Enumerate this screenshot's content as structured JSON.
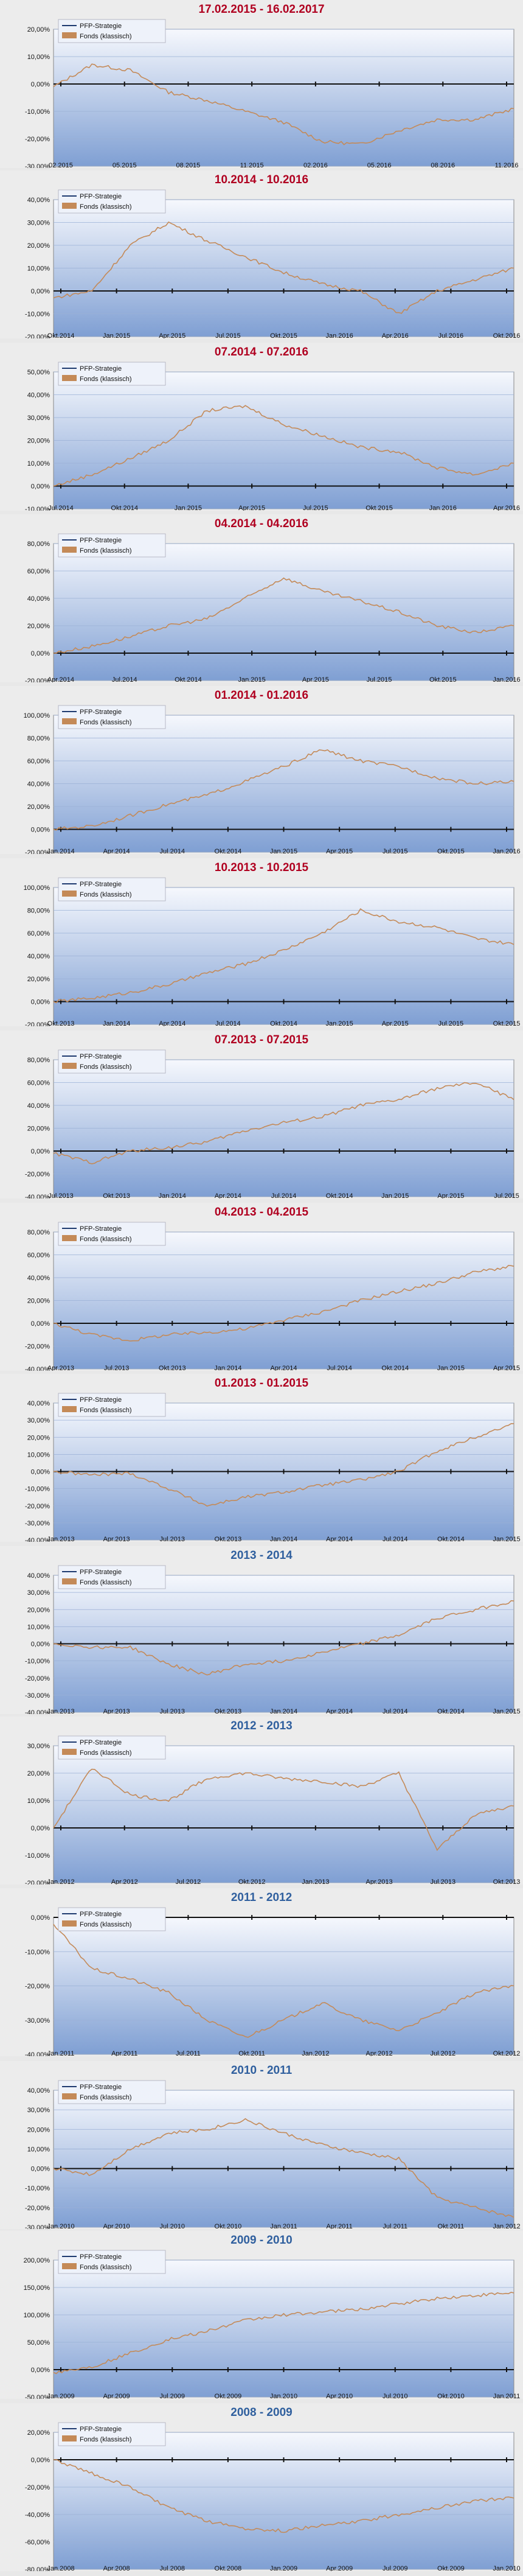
{
  "colors": {
    "period_title": "#b00020",
    "year_title": "#2f5f9e",
    "fund_line": "#c48a58",
    "ppp_line": "#1f3b70",
    "plot_bg_top": "#f6f8fd",
    "plot_bg_bottom": "#7f9fd3"
  },
  "legend": [
    "PFP-Strategie",
    "Fonds (klassisch)"
  ],
  "chart_data": [
    {
      "type": "line",
      "title": "17.02.2015 - 16.02.2017",
      "yticks": [
        "20,00%",
        "10,00%",
        "0,00%",
        "-10,00%",
        "-20,00%",
        "-30,00%"
      ],
      "ylim": [
        -30,
        20
      ],
      "xticks": [
        "02.2015",
        "05.2015",
        "08.2015",
        "11.2015",
        "02.2016",
        "05.2016",
        "08.2016",
        "11.2016"
      ],
      "series": [
        {
          "name": "Fonds (klassisch)",
          "x": [
            0,
            2,
            4,
            6,
            8,
            10,
            12,
            14,
            16,
            18,
            20,
            22,
            24
          ],
          "y": [
            -1,
            7,
            5,
            -3,
            -6,
            -10,
            -14,
            -21,
            -22,
            -17,
            -13,
            -13,
            -9
          ]
        }
      ]
    },
    {
      "type": "line",
      "title": "10.2014 - 10.2016",
      "yticks": [
        "40,00%",
        "30,00%",
        "20,00%",
        "10,00%",
        "0,00%",
        "-10,00%",
        "-20,00%"
      ],
      "ylim": [
        -20,
        40
      ],
      "xticks": [
        "Okt.2014",
        "Jan.2015",
        "Apr.2015",
        "Jul.2015",
        "Okt.2015",
        "Jan.2016",
        "Apr.2016",
        "Jul.2016",
        "Okt.2016"
      ],
      "series": [
        {
          "name": "Fonds (klassisch)",
          "x": [
            0,
            2,
            4,
            6,
            8,
            10,
            12,
            14,
            16,
            18,
            20,
            22,
            24
          ],
          "y": [
            -3,
            0,
            20,
            30,
            22,
            15,
            8,
            3,
            0,
            -10,
            0,
            5,
            10
          ]
        }
      ]
    },
    {
      "type": "line",
      "title": "07.2014 - 07.2016",
      "yticks": [
        "50,00%",
        "40,00%",
        "30,00%",
        "20,00%",
        "10,00%",
        "0,00%",
        "-10,00%"
      ],
      "ylim": [
        -10,
        50
      ],
      "xticks": [
        "Jul.2014",
        "Okt.2014",
        "Jan.2015",
        "Apr.2015",
        "Jul.2015",
        "Okt.2015",
        "Jan.2016",
        "Apr.2016"
      ],
      "series": [
        {
          "name": "Fonds (klassisch)",
          "x": [
            0,
            2,
            4,
            6,
            8,
            10,
            12,
            14,
            16,
            18,
            20,
            22,
            24
          ],
          "y": [
            0,
            5,
            12,
            20,
            33,
            35,
            27,
            22,
            17,
            15,
            8,
            5,
            10
          ]
        }
      ]
    },
    {
      "type": "line",
      "title": "04.2014 - 04.2016",
      "yticks": [
        "80,00%",
        "60,00%",
        "40,00%",
        "20,00%",
        "0,00%",
        "-20,00%"
      ],
      "ylim": [
        -20,
        80
      ],
      "xticks": [
        "Apr.2014",
        "Jul.2014",
        "Okt.2014",
        "Jan.2015",
        "Apr.2015",
        "Jul.2015",
        "Okt.2015",
        "Jan.2016"
      ],
      "series": [
        {
          "name": "Fonds (klassisch)",
          "x": [
            0,
            2,
            4,
            6,
            8,
            10,
            12,
            14,
            16,
            18,
            20,
            22,
            24
          ],
          "y": [
            0,
            5,
            12,
            20,
            25,
            40,
            55,
            45,
            38,
            30,
            20,
            15,
            20
          ]
        }
      ]
    },
    {
      "type": "line",
      "title": "01.2014 - 01.2016",
      "yticks": [
        "100,00%",
        "80,00%",
        "60,00%",
        "40,00%",
        "20,00%",
        "0,00%",
        "-20,00%"
      ],
      "ylim": [
        -20,
        100
      ],
      "xticks": [
        "Jan.2014",
        "Apr.2014",
        "Jul.2014",
        "Okt.2014",
        "Jan.2015",
        "Apr.2015",
        "Jul.2015",
        "Okt.2015",
        "Jan.2016"
      ],
      "series": [
        {
          "name": "Fonds (klassisch)",
          "x": [
            0,
            2,
            4,
            6,
            8,
            10,
            12,
            14,
            16,
            18,
            20,
            22,
            24
          ],
          "y": [
            0,
            3,
            12,
            22,
            30,
            42,
            55,
            70,
            60,
            55,
            45,
            40,
            42
          ]
        }
      ]
    },
    {
      "type": "line",
      "title": "10.2013 - 10.2015",
      "yticks": [
        "100,00%",
        "80,00%",
        "60,00%",
        "40,00%",
        "20,00%",
        "0,00%",
        "-20,00%"
      ],
      "ylim": [
        -20,
        100
      ],
      "xticks": [
        "Okt.2013",
        "Jan.2014",
        "Apr.2014",
        "Jul.2014",
        "Okt.2014",
        "Jan.2015",
        "Apr.2015",
        "Jul.2015",
        "Okt.2015"
      ],
      "series": [
        {
          "name": "Fonds (klassisch)",
          "x": [
            0,
            2,
            4,
            6,
            8,
            10,
            12,
            14,
            16,
            18,
            20,
            22,
            24
          ],
          "y": [
            0,
            3,
            8,
            15,
            25,
            33,
            45,
            60,
            80,
            70,
            65,
            55,
            50
          ]
        }
      ]
    },
    {
      "type": "line",
      "title": "07.2013 - 07.2015",
      "yticks": [
        "80,00%",
        "60,00%",
        "40,00%",
        "20,00%",
        "0,00%",
        "-20,00%",
        "-40,00%"
      ],
      "ylim": [
        -40,
        80
      ],
      "xticks": [
        "Jul.2013",
        "Okt.2013",
        "Jan.2014",
        "Apr.2014",
        "Jul.2014",
        "Okt.2014",
        "Jan.2015",
        "Apr.2015",
        "Jul.2015"
      ],
      "series": [
        {
          "name": "Fonds (klassisch)",
          "x": [
            0,
            2,
            4,
            6,
            8,
            10,
            12,
            14,
            16,
            18,
            20,
            22,
            24
          ],
          "y": [
            -2,
            -10,
            0,
            3,
            8,
            18,
            25,
            30,
            40,
            45,
            55,
            60,
            45
          ]
        }
      ]
    },
    {
      "type": "line",
      "title": "04.2013 - 04.2015",
      "yticks": [
        "80,00%",
        "60,00%",
        "40,00%",
        "20,00%",
        "0,00%",
        "-20,00%",
        "-40,00%"
      ],
      "ylim": [
        -40,
        80
      ],
      "xticks": [
        "Apr.2013",
        "Jul.2013",
        "Okt.2013",
        "Jan.2014",
        "Apr.2014",
        "Jul.2014",
        "Okt.2014",
        "Jan.2015",
        "Apr.2015"
      ],
      "series": [
        {
          "name": "Fonds (klassisch)",
          "x": [
            0,
            2,
            4,
            6,
            8,
            10,
            12,
            14,
            16,
            18,
            20,
            22,
            24
          ],
          "y": [
            0,
            -10,
            -15,
            -10,
            -8,
            -5,
            3,
            10,
            20,
            28,
            35,
            45,
            50
          ]
        }
      ]
    },
    {
      "type": "line",
      "title": "01.2013 - 01.2015",
      "yticks": [
        "40,00%",
        "30,00%",
        "20,00%",
        "10,00%",
        "0,00%",
        "-10,00%",
        "-20,00%",
        "-30,00%",
        "-40,00%"
      ],
      "ylim": [
        -40,
        40
      ],
      "xticks": [
        "Jan.2013",
        "Apr.2013",
        "Jul.2013",
        "Okt.2013",
        "Jan.2014",
        "Apr.2014",
        "Jul.2014",
        "Okt.2014",
        "Jan.2015"
      ],
      "series": [
        {
          "name": "Fonds (klassisch)",
          "x": [
            0,
            2,
            4,
            6,
            8,
            10,
            12,
            14,
            16,
            18,
            20,
            22,
            24
          ],
          "y": [
            0,
            -2,
            -1,
            -10,
            -20,
            -15,
            -12,
            -8,
            -5,
            0,
            12,
            20,
            28
          ]
        }
      ]
    },
    {
      "type": "line",
      "title": "2013 - 2014",
      "yticks": [
        "40,00%",
        "30,00%",
        "20,00%",
        "10,00%",
        "0,00%",
        "-10,00%",
        "-20,00%",
        "-30,00%",
        "-40,00%"
      ],
      "ylim": [
        -40,
        40
      ],
      "xticks": [
        "Jan.2013",
        "Apr.2013",
        "Jul.2013",
        "Okt.2013",
        "Jan.2014",
        "Apr.2014",
        "Jul.2014",
        "Okt.2014",
        "Jan.2015"
      ],
      "series": [
        {
          "name": "Fonds (klassisch)",
          "x": [
            0,
            2,
            4,
            6,
            8,
            10,
            12,
            14,
            16,
            18,
            20,
            22,
            24
          ],
          "y": [
            0,
            -2,
            -2,
            -12,
            -18,
            -12,
            -10,
            -5,
            0,
            5,
            15,
            20,
            25
          ]
        }
      ]
    },
    {
      "type": "line",
      "title": "2012 - 2013",
      "yticks": [
        "30,00%",
        "20,00%",
        "10,00%",
        "0,00%",
        "-10,00%",
        "-20,00%"
      ],
      "ylim": [
        -20,
        30
      ],
      "xticks": [
        "Jan.2012",
        "Apr.2012",
        "Jul.2012",
        "Okt.2012",
        "Jan.2013",
        "Apr.2013",
        "Jul.2013",
        "Okt.2013"
      ],
      "series": [
        {
          "name": "Fonds (klassisch)",
          "x": [
            0,
            2,
            4,
            6,
            8,
            10,
            12,
            14,
            16,
            18,
            20,
            22,
            24
          ],
          "y": [
            0,
            22,
            12,
            10,
            18,
            20,
            18,
            17,
            15,
            20,
            -8,
            5,
            8
          ]
        }
      ]
    },
    {
      "type": "line",
      "title": "2011 - 2012",
      "yticks": [
        "0,00%",
        "-10,00%",
        "-20,00%",
        "-30,00%",
        "-40,00%"
      ],
      "ylim": [
        -40,
        0
      ],
      "xticks": [
        "Jan.2011",
        "Apr.2011",
        "Jul.2011",
        "Okt.2011",
        "Jan.2012",
        "Apr.2012",
        "Jul.2012",
        "Okt.2012"
      ],
      "series": [
        {
          "name": "Fonds (klassisch)",
          "x": [
            0,
            2,
            4,
            6,
            8,
            10,
            12,
            14,
            16,
            18,
            20,
            22,
            24
          ],
          "y": [
            -2,
            -15,
            -18,
            -22,
            -30,
            -35,
            -30,
            -25,
            -30,
            -33,
            -28,
            -22,
            -20
          ]
        }
      ]
    },
    {
      "type": "line",
      "title": "2010 - 2011",
      "yticks": [
        "40,00%",
        "30,00%",
        "20,00%",
        "10,00%",
        "0,00%",
        "-10,00%",
        "-20,00%",
        "-30,00%"
      ],
      "ylim": [
        -30,
        40
      ],
      "xticks": [
        "Jan.2010",
        "Apr.2010",
        "Jul.2010",
        "Okt.2010",
        "Jan.2011",
        "Apr.2011",
        "Jul.2011",
        "Okt.2011",
        "Jan.2012"
      ],
      "series": [
        {
          "name": "Fonds (klassisch)",
          "x": [
            0,
            2,
            4,
            6,
            8,
            10,
            12,
            14,
            16,
            18,
            20,
            22,
            24
          ],
          "y": [
            0,
            -3,
            10,
            18,
            20,
            25,
            18,
            12,
            8,
            5,
            -15,
            -20,
            -25
          ]
        }
      ]
    },
    {
      "type": "line",
      "title": "2009 - 2010",
      "yticks": [
        "200,00%",
        "150,00%",
        "100,00%",
        "50,00%",
        "0,00%",
        "-50,00%"
      ],
      "ylim": [
        -50,
        200
      ],
      "xticks": [
        "Jan.2009",
        "Apr.2009",
        "Jul.2009",
        "Okt.2009",
        "Jan.2010",
        "Apr.2010",
        "Jul.2010",
        "Okt.2010",
        "Jan.2011"
      ],
      "series": [
        {
          "name": "Fonds (klassisch)",
          "x": [
            0,
            2,
            4,
            6,
            8,
            10,
            12,
            14,
            16,
            18,
            20,
            22,
            24
          ],
          "y": [
            -5,
            5,
            30,
            55,
            70,
            90,
            100,
            105,
            110,
            120,
            130,
            135,
            140
          ]
        }
      ]
    },
    {
      "type": "line",
      "title": "2008 - 2009",
      "yticks": [
        "20,00%",
        "0,00%",
        "-20,00%",
        "-40,00%",
        "-60,00%",
        "-80,00%"
      ],
      "ylim": [
        -80,
        20
      ],
      "xticks": [
        "Jan.2008",
        "Apr.2008",
        "Jul.2008",
        "Okt.2008",
        "Jan.2009",
        "Apr.2009",
        "Jul.2009",
        "Okt.2009",
        "Jan.2010"
      ],
      "series": [
        {
          "name": "Fonds (klassisch)",
          "x": [
            0,
            2,
            4,
            6,
            8,
            10,
            12,
            14,
            16,
            18,
            20,
            22,
            24
          ],
          "y": [
            0,
            -10,
            -20,
            -35,
            -45,
            -50,
            -52,
            -48,
            -45,
            -40,
            -35,
            -30,
            -28
          ]
        }
      ]
    }
  ]
}
